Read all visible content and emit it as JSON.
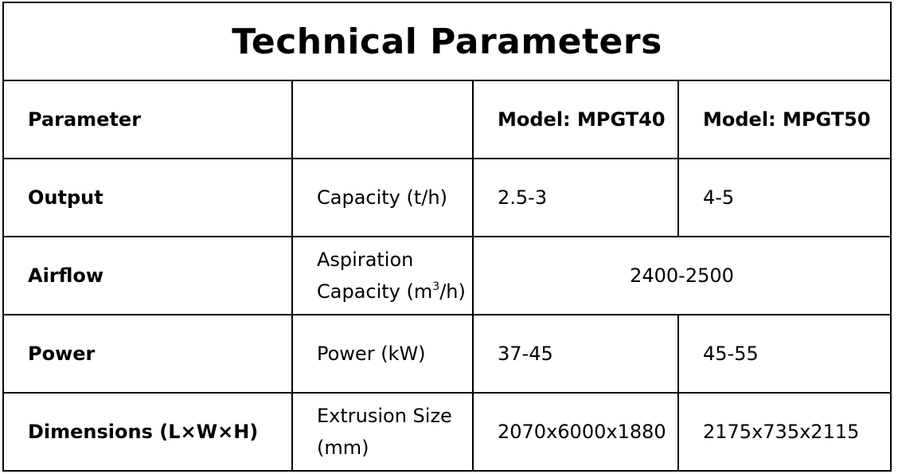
{
  "title": "Technical Parameters",
  "header": {
    "parameter": "Parameter",
    "subparam": "",
    "model1": "Model: MPGT40",
    "model2": "Model: MPGT50"
  },
  "rows": [
    {
      "parameter": "Output",
      "metric": "Capacity (t/h)",
      "model1": "2.5-3",
      "model2": "4-5"
    },
    {
      "parameter": "Airflow",
      "metric_line1": "Aspiration",
      "metric_line2_pre": "Capacity (m",
      "metric_sup": "3",
      "metric_line2_post": "/h)",
      "shared_value": "2400-2500"
    },
    {
      "parameter": "Power",
      "metric": "Power (kW)",
      "model1": "37-45",
      "model2": "45-55"
    },
    {
      "parameter": "Dimensions (L×W×H)",
      "metric_line1": "Extrusion Size",
      "metric_line2": "(mm)",
      "model1": "2070x6000x1880",
      "model2": "2175x735x2115"
    }
  ]
}
